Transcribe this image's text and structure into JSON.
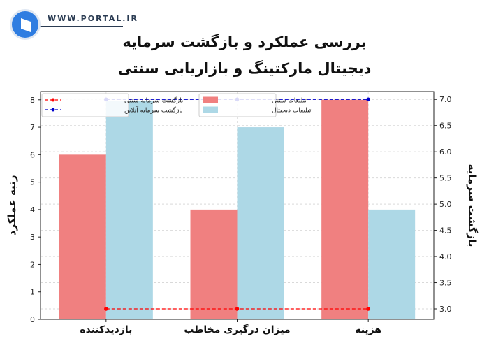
{
  "brand": {
    "site": "WWW.PORTAL.IR"
  },
  "title_lines": [
    "بررسی عملکرد و بازگشت سرمایه",
    "دیجیتال مارکتینگ و بازاریابی سنتی"
  ],
  "colors": {
    "traditional_bar": "#f08080",
    "digital_bar": "#add8e6",
    "traditional_roi_line": "#ff0000",
    "online_roi_line": "#0000cc"
  },
  "chart_data": {
    "type": "bar",
    "categories": [
      "بازدیدکننده",
      "میزان درگیری مخاطب",
      "هزینه"
    ],
    "series": [
      {
        "name": "تبلیغات سنتی",
        "values": [
          6,
          4,
          8
        ],
        "axis": "left",
        "kind": "bar"
      },
      {
        "name": "تبلیغات دیجیتال",
        "values": [
          7.96,
          7,
          4
        ],
        "axis": "left",
        "kind": "bar"
      },
      {
        "name": "بازگشت سرمایه سنتی",
        "values": [
          3.0,
          3.0,
          3.0
        ],
        "axis": "right",
        "kind": "line",
        "style": "dashed"
      },
      {
        "name": "بازگشت سرمایه آنلاین",
        "values": [
          7.0,
          7.0,
          7.0
        ],
        "axis": "right",
        "kind": "line",
        "style": "dashed"
      }
    ],
    "ylabel": "رتبه عملکرد",
    "y2label": "بازگشت سرمایه",
    "ylim": [
      0,
      8.3
    ],
    "y2lim": [
      2.8,
      7.15
    ],
    "yticks": [
      0,
      1,
      2,
      3,
      4,
      5,
      6,
      7,
      8
    ],
    "y2ticks": [
      3.0,
      3.5,
      4.0,
      4.5,
      5.0,
      5.5,
      6.0,
      6.5,
      7.0
    ],
    "y2tick_labels": [
      "3.0",
      "3.5",
      "4.0",
      "4.5",
      "5.0",
      "5.5",
      "6.0",
      "6.5",
      "7.0"
    ],
    "grid": true,
    "legends": {
      "lines": {
        "placement": "top-left",
        "entries": [
          "بازگشت سرمایه سنتی",
          "بازگشت سرمایه آنلاین"
        ]
      },
      "bars": {
        "placement": "top-center",
        "entries": [
          "تبلیغات سنتی",
          "تبلیغات دیجیتال"
        ]
      }
    }
  }
}
